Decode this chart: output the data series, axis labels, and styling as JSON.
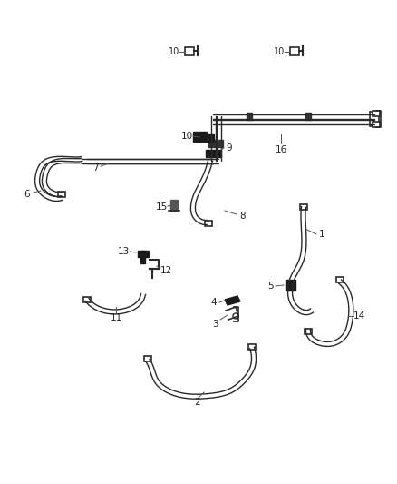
{
  "bg_color": "#ffffff",
  "line_color": "#2a2a2a",
  "label_color": "#222222",
  "figsize": [
    4.38,
    5.33
  ],
  "dpi": 100
}
